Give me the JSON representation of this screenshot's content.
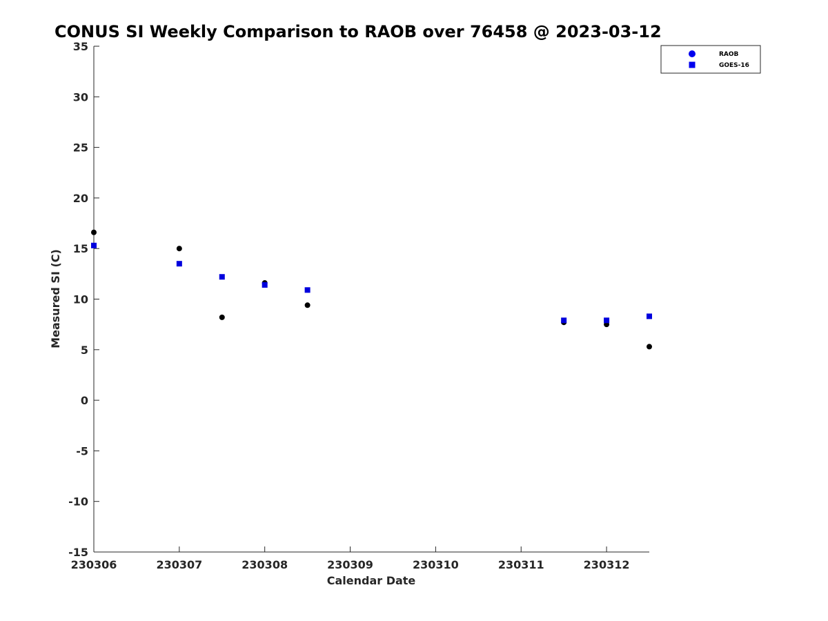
{
  "chart_data": {
    "type": "scatter",
    "title": "CONUS SI Weekly Comparison to RAOB over 76458 @ 2023-03-12",
    "xlabel": "Calendar Date",
    "ylabel": "Measured SI (C)",
    "x_tick_labels": [
      "230306",
      "230307",
      "230308",
      "230309",
      "230310",
      "230311",
      "230312"
    ],
    "x_tick_values": [
      0,
      1,
      2,
      3,
      4,
      5,
      6
    ],
    "xlim": [
      0,
      6.5
    ],
    "ylim": [
      -15,
      35
    ],
    "y_ticks": [
      -15,
      -10,
      -5,
      0,
      5,
      10,
      15,
      20,
      25,
      30,
      35
    ],
    "grid": false,
    "legend_position": "top-right",
    "series": [
      {
        "name": "RAOB",
        "marker": "circle",
        "color": "#000000",
        "points": [
          {
            "x": 0.0,
            "y": 16.6
          },
          {
            "x": 1.0,
            "y": 15.0
          },
          {
            "x": 1.5,
            "y": 8.2
          },
          {
            "x": 2.0,
            "y": 11.6
          },
          {
            "x": 2.5,
            "y": 9.4
          },
          {
            "x": 5.5,
            "y": 7.7
          },
          {
            "x": 6.0,
            "y": 7.5
          },
          {
            "x": 6.5,
            "y": 5.3
          }
        ]
      },
      {
        "name": "GOES-16",
        "marker": "square",
        "color": "#0000dd",
        "points": [
          {
            "x": 0.0,
            "y": 15.3
          },
          {
            "x": 1.0,
            "y": 13.5
          },
          {
            "x": 1.5,
            "y": 12.2
          },
          {
            "x": 2.0,
            "y": 11.4
          },
          {
            "x": 2.5,
            "y": 10.9
          },
          {
            "x": 5.5,
            "y": 7.9
          },
          {
            "x": 6.0,
            "y": 7.9
          },
          {
            "x": 6.5,
            "y": 8.3
          }
        ]
      }
    ],
    "legend_marker_color": "#0000ee"
  }
}
